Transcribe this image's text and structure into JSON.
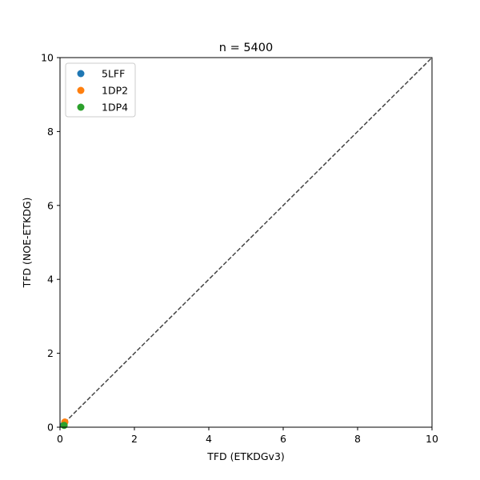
{
  "chart_data": {
    "type": "scatter",
    "title": "n = 5400",
    "xlabel": "TFD (ETKDGv3)",
    "ylabel": "TFD (NOE-ETKDG)",
    "xlim": [
      0,
      10
    ],
    "ylim": [
      0,
      10
    ],
    "xticks": [
      0,
      2,
      4,
      6,
      8,
      10
    ],
    "yticks": [
      0,
      2,
      4,
      6,
      8,
      10
    ],
    "grid": false,
    "legend_position": "top-left",
    "reference_line": {
      "style": "dashed",
      "color": "#444444",
      "from": [
        0,
        0
      ],
      "to": [
        10,
        10
      ]
    },
    "series": [
      {
        "name": "5LFF",
        "color": "#1f77b4",
        "points": [
          [
            0.1,
            0.06
          ]
        ]
      },
      {
        "name": "1DP2",
        "color": "#ff7f0e",
        "points": [
          [
            0.13,
            0.14
          ]
        ]
      },
      {
        "name": "1DP4",
        "color": "#2ca02c",
        "points": [
          [
            0.11,
            0.05
          ]
        ]
      }
    ]
  }
}
